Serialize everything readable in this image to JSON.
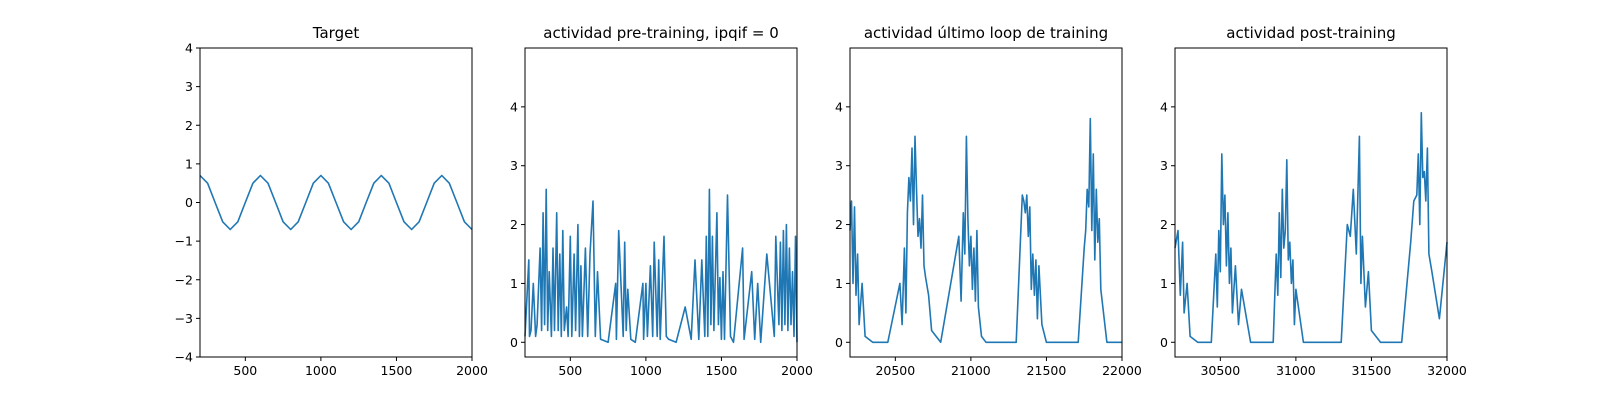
{
  "colors": {
    "line": "#1f77b4"
  },
  "chart_data": [
    {
      "type": "line",
      "title": "Target",
      "xlim": [
        200,
        2000
      ],
      "ylim": [
        -4,
        4
      ],
      "xticks": [
        500,
        1000,
        1500,
        2000
      ],
      "yticks": [
        -4,
        -3,
        -2,
        -1,
        0,
        1,
        2,
        3,
        4
      ],
      "x": [
        200,
        250,
        300,
        350,
        400,
        450,
        500,
        550,
        600,
        650,
        700,
        750,
        800,
        850,
        900,
        950,
        1000,
        1050,
        1100,
        1150,
        1200,
        1250,
        1300,
        1350,
        1400,
        1450,
        1500,
        1550,
        1600,
        1650,
        1700,
        1750,
        1800,
        1850,
        1900,
        1950,
        2000
      ],
      "y": [
        0.7,
        0.5,
        0.0,
        -0.5,
        -0.7,
        -0.5,
        0.0,
        0.5,
        0.7,
        0.5,
        0.0,
        -0.5,
        -0.7,
        -0.5,
        0.0,
        0.5,
        0.7,
        0.5,
        0.0,
        -0.5,
        -0.7,
        -0.5,
        0.0,
        0.5,
        0.7,
        0.5,
        0.0,
        -0.5,
        -0.7,
        -0.5,
        0.0,
        0.5,
        0.7,
        0.5,
        0.0,
        -0.5,
        -0.7
      ]
    },
    {
      "type": "line",
      "title": "actividad pre-training, ipqif = 0",
      "xlim": [
        200,
        2000
      ],
      "ylim": [
        -0.25,
        5.0
      ],
      "xticks": [
        500,
        1000,
        1500,
        2000
      ],
      "yticks": [
        0,
        1,
        2,
        3,
        4
      ],
      "x": [
        200,
        225,
        230,
        240,
        255,
        270,
        280,
        300,
        310,
        320,
        330,
        340,
        350,
        360,
        375,
        385,
        395,
        410,
        420,
        430,
        440,
        450,
        460,
        475,
        485,
        500,
        510,
        525,
        535,
        550,
        560,
        570,
        580,
        600,
        615,
        630,
        650,
        665,
        680,
        700,
        750,
        800,
        805,
        820,
        850,
        860,
        870,
        880,
        900,
        930,
        980,
        985,
        1000,
        1010,
        1030,
        1045,
        1055,
        1075,
        1085,
        1095,
        1120,
        1135,
        1150,
        1200,
        1260,
        1300,
        1325,
        1350,
        1370,
        1390,
        1400,
        1410,
        1420,
        1430,
        1440,
        1450,
        1470,
        1480,
        1490,
        1500,
        1510,
        1520,
        1540,
        1560,
        1580,
        1640,
        1650,
        1700,
        1720,
        1740,
        1760,
        1800,
        1850,
        1860,
        1880,
        1890,
        1900,
        1910,
        1920,
        1930,
        1940,
        1950,
        1960,
        1970,
        1980,
        1990,
        2000
      ],
      "y": [
        0.1,
        1.4,
        0.1,
        0.2,
        1.0,
        0.1,
        0.3,
        1.6,
        0.2,
        2.2,
        0.3,
        2.6,
        0.2,
        1.2,
        0.1,
        1.6,
        0.2,
        2.2,
        0.2,
        1.5,
        0.1,
        1.9,
        0.2,
        0.6,
        0.1,
        1.8,
        0.1,
        1.5,
        0.2,
        2.0,
        0.1,
        1.3,
        0.1,
        1.6,
        0.1,
        1.5,
        2.4,
        0.1,
        1.2,
        0.05,
        0.0,
        1.0,
        0.05,
        1.9,
        0.1,
        1.7,
        0.2,
        0.9,
        0.05,
        0.0,
        1.0,
        0.05,
        1.0,
        0.1,
        1.3,
        0.1,
        1.7,
        0.1,
        1.4,
        0.05,
        1.8,
        0.1,
        0.05,
        0.0,
        0.6,
        0.05,
        1.4,
        0.05,
        1.4,
        0.1,
        1.8,
        0.1,
        2.6,
        0.3,
        1.8,
        0.2,
        2.2,
        0.3,
        1.1,
        0.05,
        1.2,
        0.05,
        2.5,
        0.1,
        0.0,
        1.6,
        0.05,
        1.2,
        0.05,
        1.0,
        0.0,
        1.5,
        0.1,
        1.8,
        0.3,
        1.7,
        0.2,
        1.9,
        0.3,
        2.0,
        0.2,
        1.6,
        0.3,
        1.2,
        0.1,
        1.8,
        0.0
      ]
    },
    {
      "type": "line",
      "title": "actividad último loop de training",
      "xlim": [
        20200,
        22000
      ],
      "ylim": [
        -0.25,
        5.0
      ],
      "xticks": [
        20500,
        21000,
        21500,
        22000
      ],
      "yticks": [
        0,
        1,
        2,
        3,
        4
      ],
      "x": [
        20200,
        20210,
        20220,
        20230,
        20240,
        20250,
        20260,
        20280,
        20300,
        20350,
        20450,
        20530,
        20545,
        20560,
        20570,
        20580,
        20590,
        20600,
        20610,
        20620,
        20630,
        20640,
        20650,
        20660,
        20670,
        20680,
        20690,
        20700,
        20720,
        20740,
        20800,
        20920,
        20935,
        20950,
        20960,
        20970,
        20980,
        20990,
        21000,
        21010,
        21020,
        21030,
        21040,
        21050,
        21070,
        21100,
        21150,
        21300,
        21340,
        21350,
        21360,
        21370,
        21380,
        21390,
        21400,
        21410,
        21420,
        21430,
        21440,
        21450,
        21470,
        21500,
        21600,
        21710,
        21750,
        21760,
        21770,
        21780,
        21790,
        21800,
        21810,
        21820,
        21830,
        21840,
        21850,
        21860,
        21900,
        22000
      ],
      "y": [
        1.9,
        2.4,
        1.0,
        2.3,
        0.8,
        1.5,
        0.3,
        1.0,
        0.1,
        0.0,
        0.0,
        1.0,
        0.3,
        1.6,
        0.5,
        2.2,
        2.8,
        2.4,
        3.3,
        2.0,
        3.5,
        2.6,
        1.8,
        2.1,
        1.6,
        2.5,
        1.3,
        1.1,
        0.8,
        0.2,
        0.0,
        1.8,
        0.7,
        2.2,
        1.5,
        3.5,
        2.1,
        1.3,
        1.8,
        0.9,
        1.6,
        0.7,
        1.9,
        0.6,
        0.1,
        0.0,
        0.0,
        0.0,
        2.5,
        2.4,
        2.2,
        2.5,
        1.8,
        2.3,
        0.9,
        1.5,
        0.8,
        1.4,
        0.4,
        1.3,
        0.3,
        0.0,
        0.0,
        0.0,
        1.6,
        1.9,
        2.6,
        2.3,
        3.8,
        1.9,
        3.2,
        1.4,
        2.6,
        1.7,
        2.1,
        0.9,
        0.0,
        0.0
      ]
    },
    {
      "type": "line",
      "title": "actividad post-training",
      "xlim": [
        30200,
        32000
      ],
      "ylim": [
        -0.25,
        5.0
      ],
      "xticks": [
        30500,
        31000,
        31500,
        32000
      ],
      "yticks": [
        0,
        1,
        2,
        3,
        4
      ],
      "x": [
        30200,
        30220,
        30235,
        30250,
        30260,
        30280,
        30300,
        30350,
        30440,
        30470,
        30480,
        30490,
        30500,
        30510,
        30520,
        30530,
        30540,
        30550,
        30560,
        30570,
        30580,
        30600,
        30620,
        30640,
        30700,
        30850,
        30870,
        30880,
        30890,
        30900,
        30910,
        30920,
        30930,
        30940,
        30950,
        30960,
        30970,
        30980,
        30990,
        31000,
        31050,
        31300,
        31340,
        31360,
        31380,
        31400,
        31420,
        31430,
        31440,
        31460,
        31480,
        31500,
        31560,
        31600,
        31700,
        31760,
        31780,
        31800,
        31810,
        31820,
        31830,
        31840,
        31850,
        31860,
        31870,
        31880,
        31900,
        31950,
        32000
      ],
      "y": [
        1.6,
        1.9,
        0.8,
        1.7,
        0.5,
        1.0,
        0.1,
        0.0,
        0.0,
        1.5,
        0.6,
        1.9,
        1.2,
        3.2,
        2.0,
        2.5,
        1.3,
        2.2,
        1.0,
        1.6,
        0.5,
        1.3,
        0.3,
        0.9,
        0.0,
        0.0,
        1.5,
        0.8,
        2.2,
        1.1,
        2.6,
        1.6,
        1.9,
        3.1,
        1.4,
        1.7,
        1.0,
        1.4,
        0.3,
        0.9,
        0.0,
        0.0,
        2.0,
        1.8,
        2.6,
        1.5,
        3.5,
        1.0,
        1.8,
        0.6,
        1.2,
        0.2,
        0.0,
        0.0,
        0.0,
        1.7,
        2.4,
        2.5,
        3.2,
        2.0,
        3.9,
        2.8,
        2.9,
        2.4,
        3.3,
        1.5,
        1.2,
        0.4,
        1.7
      ]
    }
  ]
}
